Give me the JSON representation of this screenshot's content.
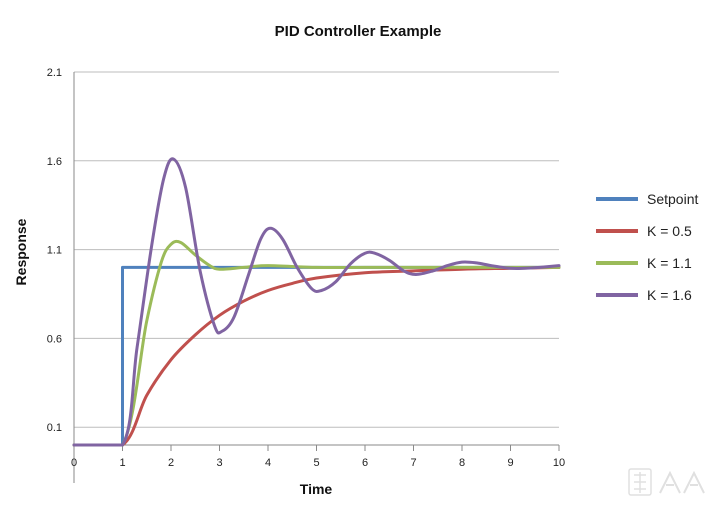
{
  "chart_data": {
    "type": "line",
    "title": "PID Controller Example",
    "xlabel": "Time",
    "ylabel": "Response",
    "xlim": [
      0,
      10
    ],
    "ylim": [
      0,
      2.1
    ],
    "x_ticks": [
      "0",
      "1",
      "2",
      "3",
      "4",
      "5",
      "6",
      "7",
      "8",
      "9",
      "10"
    ],
    "y_ticks": [
      "0.1",
      "0.6",
      "1.1",
      "1.6",
      "2.1"
    ],
    "grid": "horizontal",
    "legend_position": "right",
    "series": [
      {
        "name": "Setpoint",
        "color": "#4f81bd",
        "points": [
          [
            0,
            0
          ],
          [
            1,
            0
          ],
          [
            1,
            1
          ],
          [
            10,
            1
          ]
        ]
      },
      {
        "name": "K = 0.5",
        "color": "#c0504d",
        "points": [
          [
            0,
            0
          ],
          [
            1,
            0
          ],
          [
            1.5,
            0.28
          ],
          [
            2,
            0.48
          ],
          [
            2.5,
            0.62
          ],
          [
            3,
            0.73
          ],
          [
            3.5,
            0.81
          ],
          [
            4,
            0.87
          ],
          [
            4.5,
            0.91
          ],
          [
            5,
            0.94
          ],
          [
            6,
            0.97
          ],
          [
            7,
            0.98
          ],
          [
            8,
            0.99
          ],
          [
            9,
            0.995
          ],
          [
            10,
            1.0
          ]
        ]
      },
      {
        "name": "K = 1.1",
        "color": "#9bbb59",
        "points": [
          [
            0,
            0
          ],
          [
            1,
            0
          ],
          [
            1.5,
            0.7
          ],
          [
            1.8,
            1.03
          ],
          [
            2,
            1.13
          ],
          [
            2.2,
            1.14
          ],
          [
            2.5,
            1.07
          ],
          [
            2.8,
            1.01
          ],
          [
            3,
            0.99
          ],
          [
            3.5,
            1.0
          ],
          [
            4,
            1.01
          ],
          [
            5,
            1.0
          ],
          [
            6,
            1.0
          ],
          [
            7,
            1.0
          ],
          [
            8,
            1.0
          ],
          [
            9,
            1.0
          ],
          [
            10,
            1.0
          ]
        ]
      },
      {
        "name": "K = 1.6",
        "color": "#8064a2",
        "points": [
          [
            0,
            0
          ],
          [
            1,
            0
          ],
          [
            1.3,
            0.55
          ],
          [
            1.6,
            1.12
          ],
          [
            1.85,
            1.5
          ],
          [
            2.05,
            1.61
          ],
          [
            2.3,
            1.45
          ],
          [
            2.6,
            0.98
          ],
          [
            2.9,
            0.67
          ],
          [
            3.05,
            0.64
          ],
          [
            3.3,
            0.72
          ],
          [
            3.6,
            0.96
          ],
          [
            3.85,
            1.16
          ],
          [
            4.05,
            1.22
          ],
          [
            4.3,
            1.16
          ],
          [
            4.6,
            1.0
          ],
          [
            4.9,
            0.88
          ],
          [
            5.1,
            0.87
          ],
          [
            5.4,
            0.92
          ],
          [
            5.7,
            1.02
          ],
          [
            6,
            1.08
          ],
          [
            6.2,
            1.08
          ],
          [
            6.5,
            1.04
          ],
          [
            6.8,
            0.98
          ],
          [
            7.05,
            0.96
          ],
          [
            7.4,
            0.98
          ],
          [
            7.7,
            1.01
          ],
          [
            8,
            1.03
          ],
          [
            8.3,
            1.025
          ],
          [
            8.6,
            1.01
          ],
          [
            9,
            0.995
          ],
          [
            9.3,
            0.995
          ],
          [
            9.6,
            1.0
          ],
          [
            10,
            1.01
          ]
        ]
      }
    ]
  }
}
